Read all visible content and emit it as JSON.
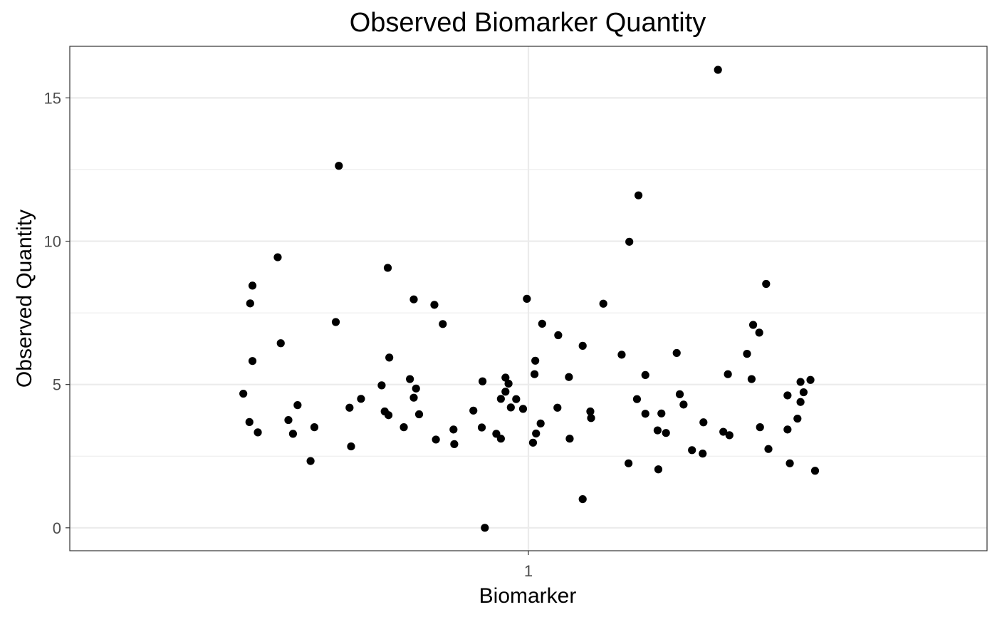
{
  "chart_data": {
    "type": "scatter",
    "title": "Observed Biomarker Quantity",
    "xlabel": "Biomarker",
    "ylabel": "Observed Quantity",
    "x_categories": [
      "1"
    ],
    "xlim": [
      0.4,
      1.6
    ],
    "ylim": [
      -0.8,
      16.8
    ],
    "y_ticks": [
      0,
      5,
      10,
      15
    ],
    "grid": true,
    "legend": "none",
    "point_color": "#000000",
    "series": [
      {
        "category": "1",
        "points": [
          {
            "x": 0.627,
            "y": 4.68
          },
          {
            "x": 0.635,
            "y": 3.69
          },
          {
            "x": 0.636,
            "y": 7.83
          },
          {
            "x": 0.639,
            "y": 8.45
          },
          {
            "x": 0.639,
            "y": 5.82
          },
          {
            "x": 0.646,
            "y": 3.33
          },
          {
            "x": 0.672,
            "y": 9.44
          },
          {
            "x": 0.676,
            "y": 6.44
          },
          {
            "x": 0.686,
            "y": 3.76
          },
          {
            "x": 0.692,
            "y": 3.28
          },
          {
            "x": 0.698,
            "y": 4.28
          },
          {
            "x": 0.715,
            "y": 2.33
          },
          {
            "x": 0.72,
            "y": 3.51
          },
          {
            "x": 0.748,
            "y": 7.18
          },
          {
            "x": 0.752,
            "y": 12.63
          },
          {
            "x": 0.766,
            "y": 4.19
          },
          {
            "x": 0.768,
            "y": 2.84
          },
          {
            "x": 0.781,
            "y": 4.5
          },
          {
            "x": 0.808,
            "y": 4.97
          },
          {
            "x": 0.812,
            "y": 4.06
          },
          {
            "x": 0.816,
            "y": 9.07
          },
          {
            "x": 0.817,
            "y": 3.93
          },
          {
            "x": 0.818,
            "y": 5.94
          },
          {
            "x": 0.837,
            "y": 3.51
          },
          {
            "x": 0.845,
            "y": 5.19
          },
          {
            "x": 0.85,
            "y": 4.54
          },
          {
            "x": 0.85,
            "y": 7.97
          },
          {
            "x": 0.853,
            "y": 4.86
          },
          {
            "x": 0.857,
            "y": 3.96
          },
          {
            "x": 0.877,
            "y": 7.78
          },
          {
            "x": 0.879,
            "y": 3.08
          },
          {
            "x": 0.888,
            "y": 7.11
          },
          {
            "x": 0.902,
            "y": 3.43
          },
          {
            "x": 0.903,
            "y": 2.92
          },
          {
            "x": 0.928,
            "y": 4.09
          },
          {
            "x": 0.939,
            "y": 3.5
          },
          {
            "x": 0.94,
            "y": 5.11
          },
          {
            "x": 0.943,
            "y": 0.0
          },
          {
            "x": 0.958,
            "y": 3.28
          },
          {
            "x": 0.964,
            "y": 4.5
          },
          {
            "x": 0.964,
            "y": 3.11
          },
          {
            "x": 0.97,
            "y": 4.75
          },
          {
            "x": 0.97,
            "y": 5.24
          },
          {
            "x": 0.974,
            "y": 5.03
          },
          {
            "x": 0.977,
            "y": 4.2
          },
          {
            "x": 0.984,
            "y": 4.49
          },
          {
            "x": 0.993,
            "y": 4.15
          },
          {
            "x": 0.998,
            "y": 7.99
          },
          {
            "x": 1.006,
            "y": 2.97
          },
          {
            "x": 1.008,
            "y": 5.36
          },
          {
            "x": 1.009,
            "y": 5.83
          },
          {
            "x": 1.01,
            "y": 3.29
          },
          {
            "x": 1.016,
            "y": 3.64
          },
          {
            "x": 1.018,
            "y": 7.12
          },
          {
            "x": 1.038,
            "y": 4.19
          },
          {
            "x": 1.039,
            "y": 6.72
          },
          {
            "x": 1.053,
            "y": 5.26
          },
          {
            "x": 1.054,
            "y": 3.11
          },
          {
            "x": 1.071,
            "y": 6.35
          },
          {
            "x": 1.071,
            "y": 1.0
          },
          {
            "x": 1.081,
            "y": 4.06
          },
          {
            "x": 1.082,
            "y": 3.83
          },
          {
            "x": 1.098,
            "y": 7.82
          },
          {
            "x": 1.122,
            "y": 6.04
          },
          {
            "x": 1.131,
            "y": 2.25
          },
          {
            "x": 1.132,
            "y": 9.98
          },
          {
            "x": 1.142,
            "y": 4.49
          },
          {
            "x": 1.144,
            "y": 11.6
          },
          {
            "x": 1.153,
            "y": 3.98
          },
          {
            "x": 1.153,
            "y": 5.33
          },
          {
            "x": 1.169,
            "y": 3.4
          },
          {
            "x": 1.17,
            "y": 2.04
          },
          {
            "x": 1.174,
            "y": 3.99
          },
          {
            "x": 1.18,
            "y": 3.31
          },
          {
            "x": 1.194,
            "y": 6.1
          },
          {
            "x": 1.198,
            "y": 4.66
          },
          {
            "x": 1.203,
            "y": 4.3
          },
          {
            "x": 1.214,
            "y": 2.71
          },
          {
            "x": 1.228,
            "y": 2.59
          },
          {
            "x": 1.229,
            "y": 3.68
          },
          {
            "x": 1.248,
            "y": 15.98
          },
          {
            "x": 1.255,
            "y": 3.35
          },
          {
            "x": 1.261,
            "y": 5.36
          },
          {
            "x": 1.263,
            "y": 3.23
          },
          {
            "x": 1.286,
            "y": 6.07
          },
          {
            "x": 1.292,
            "y": 5.19
          },
          {
            "x": 1.294,
            "y": 7.08
          },
          {
            "x": 1.302,
            "y": 6.81
          },
          {
            "x": 1.303,
            "y": 3.51
          },
          {
            "x": 1.311,
            "y": 8.51
          },
          {
            "x": 1.314,
            "y": 2.75
          },
          {
            "x": 1.339,
            "y": 4.62
          },
          {
            "x": 1.339,
            "y": 3.43
          },
          {
            "x": 1.342,
            "y": 2.25
          },
          {
            "x": 1.352,
            "y": 3.81
          },
          {
            "x": 1.356,
            "y": 4.39
          },
          {
            "x": 1.356,
            "y": 5.09
          },
          {
            "x": 1.36,
            "y": 4.73
          },
          {
            "x": 1.369,
            "y": 5.16
          },
          {
            "x": 1.375,
            "y": 1.99
          }
        ]
      }
    ]
  }
}
